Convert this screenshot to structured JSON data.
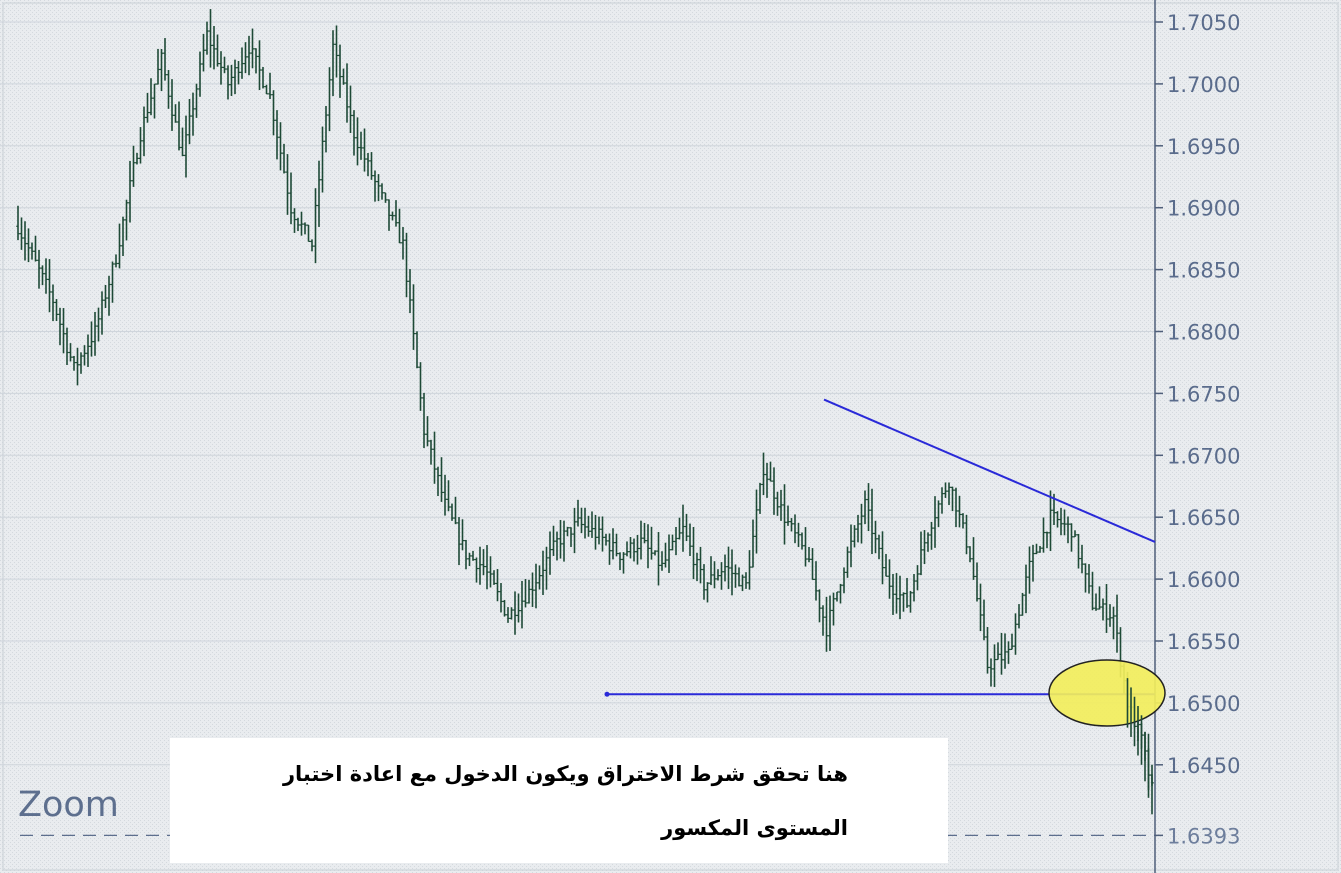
{
  "chart_data": {
    "type": "ohlc",
    "title": "",
    "xlabel": "",
    "ylabel": "",
    "ylim": [
      1.6375,
      1.7075
    ],
    "yticks": [
      "1.7050",
      "1.7000",
      "1.6950",
      "1.6900",
      "1.6850",
      "1.6800",
      "1.6750",
      "1.6700",
      "1.6650",
      "1.6600",
      "1.6550",
      "1.6500",
      "1.6450"
    ],
    "last_price_label": "1.6393",
    "zoom_label": "Zoom",
    "bar_color": "#1e4a36",
    "trendline_color": "#2a2ad8",
    "highlight_color": "#f2ee5c",
    "background_color": "#e8ebee",
    "anchors": [
      [
        0,
        1.6885
      ],
      [
        10,
        1.6825
      ],
      [
        16,
        1.677
      ],
      [
        22,
        1.68
      ],
      [
        28,
        1.686
      ],
      [
        35,
        1.696
      ],
      [
        41,
        1.702
      ],
      [
        47,
        1.694
      ],
      [
        54,
        1.704
      ],
      [
        60,
        1.7
      ],
      [
        66,
        1.703
      ],
      [
        72,
        1.699
      ],
      [
        78,
        1.69
      ],
      [
        84,
        1.687
      ],
      [
        90,
        1.703
      ],
      [
        96,
        1.696
      ],
      [
        102,
        1.692
      ],
      [
        110,
        1.687
      ],
      [
        116,
        1.672
      ],
      [
        122,
        1.666
      ],
      [
        128,
        1.662
      ],
      [
        133,
        1.661
      ],
      [
        140,
        1.657
      ],
      [
        146,
        1.659
      ],
      [
        154,
        1.663
      ],
      [
        160,
        1.6645
      ],
      [
        166,
        1.6635
      ],
      [
        172,
        1.662
      ],
      [
        178,
        1.663
      ],
      [
        184,
        1.661
      ],
      [
        190,
        1.664
      ],
      [
        196,
        1.6595
      ],
      [
        202,
        1.661
      ],
      [
        208,
        1.6595
      ],
      [
        213,
        1.669
      ],
      [
        219,
        1.665
      ],
      [
        225,
        1.662
      ],
      [
        231,
        1.656
      ],
      [
        237,
        1.662
      ],
      [
        242,
        1.666
      ],
      [
        248,
        1.66
      ],
      [
        254,
        1.658
      ],
      [
        260,
        1.664
      ],
      [
        266,
        1.668
      ],
      [
        272,
        1.662
      ],
      [
        277,
        1.653
      ],
      [
        283,
        1.654
      ],
      [
        289,
        1.661
      ],
      [
        295,
        1.665
      ],
      [
        301,
        1.664
      ],
      [
        307,
        1.658
      ],
      [
        313,
        1.657
      ],
      [
        317,
        1.65
      ],
      [
        321,
        1.647
      ],
      [
        324,
        1.643
      ]
    ]
  },
  "annotation": {
    "line1": "هنا تحقق شرط الاختراق ويكون الدخول مع اعادة اختبار",
    "line2": "المستوى المكسور"
  }
}
